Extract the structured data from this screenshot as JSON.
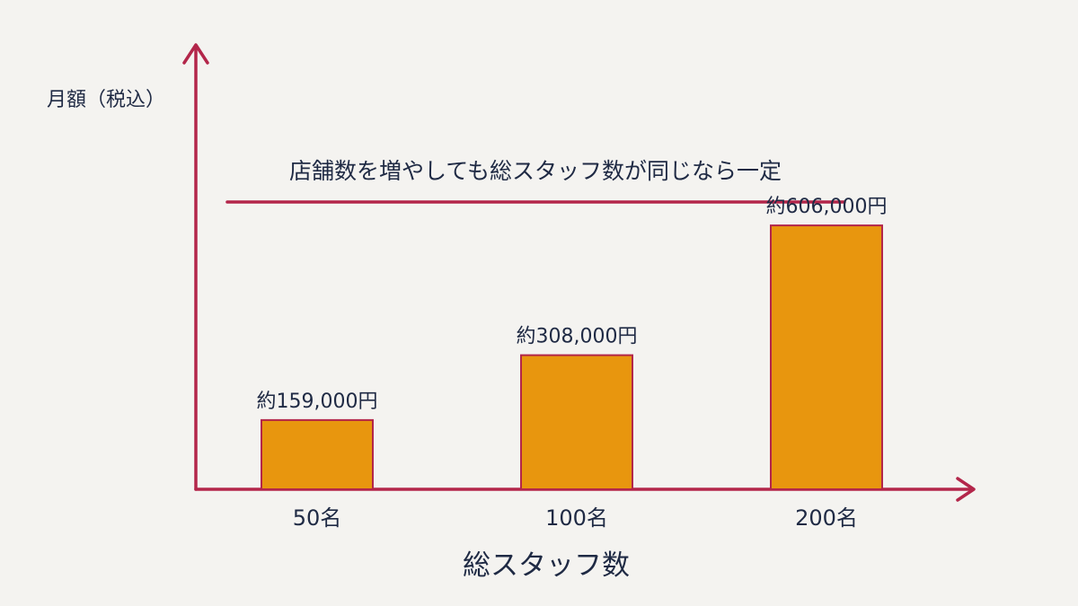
{
  "chart_data": {
    "type": "bar",
    "title": "",
    "xlabel": "総スタッフ数",
    "ylabel": "月額（税込）",
    "categories": [
      "50名",
      "100名",
      "200名"
    ],
    "values": [
      159000,
      308000,
      606000
    ],
    "value_labels": [
      "約159,000円",
      "約308,000円",
      "約606,000円"
    ],
    "ylim": [
      0,
      1000000
    ],
    "grid": false,
    "annotation": "店舗数を増やしても総スタッフ数が同じなら一定",
    "colors": {
      "bar": "#e8960e",
      "axis": "#b3264a",
      "text": "#1f2a44",
      "background": "#f4f3f0"
    }
  }
}
